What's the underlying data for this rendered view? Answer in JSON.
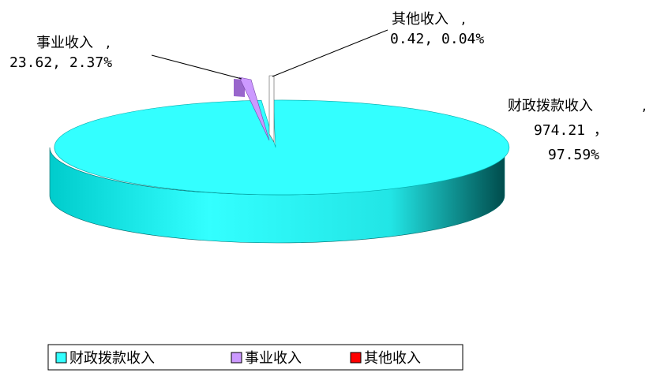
{
  "chart_data": {
    "type": "pie",
    "title": "",
    "slices": [
      {
        "name": "财政拨款收入",
        "value": 974.21,
        "value_text": "974.21 ，",
        "percent_text": "97.59%",
        "color": "#33FFFF"
      },
      {
        "name": "事业收入",
        "value": 23.62,
        "value_text": "23.62, 2.37%",
        "percent_text": "",
        "color": "#CC99FF"
      },
      {
        "name": "其他收入",
        "value": 0.42,
        "value_text": "0.42, 0.04%",
        "percent_text": "",
        "color": "#FF0000"
      }
    ],
    "legend_position": "bottom-left"
  }
}
